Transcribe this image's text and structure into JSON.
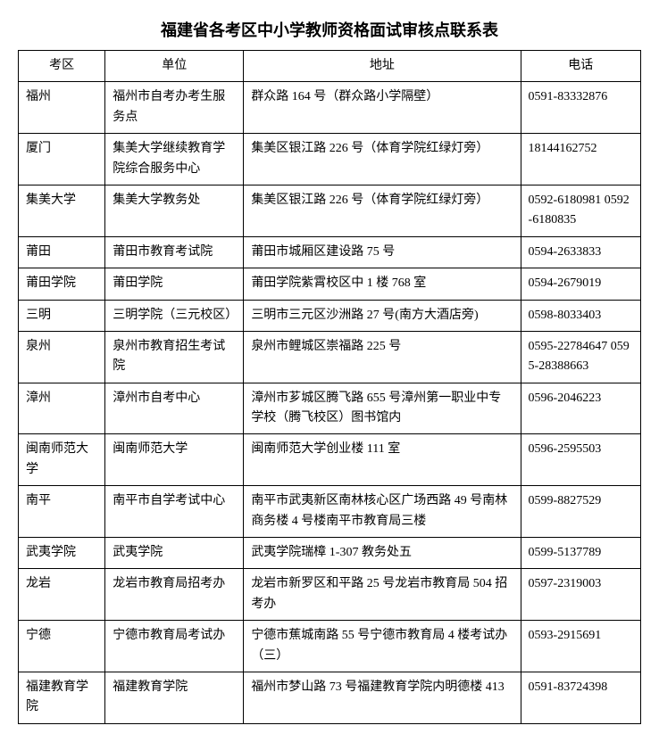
{
  "title": "福建省各考区中小学教师资格面试审核点联系表",
  "columns": [
    "考区",
    "单位",
    "地址",
    "电话"
  ],
  "rows": [
    {
      "area": "福州",
      "unit": "福州市自考办考生服务点",
      "addr": "群众路 164 号（群众路小学隔壁）",
      "tel": "0591-83332876"
    },
    {
      "area": "厦门",
      "unit": "集美大学继续教育学院综合服务中心",
      "addr": "集美区银江路 226 号（体育学院红绿灯旁）",
      "tel": "18144162752"
    },
    {
      "area": "集美大学",
      "unit": "集美大学教务处",
      "addr": "集美区银江路 226 号（体育学院红绿灯旁）",
      "tel": "0592-6180981 0592-6180835"
    },
    {
      "area": "莆田",
      "unit": "莆田市教育考试院",
      "addr": "莆田市城厢区建设路 75 号",
      "tel": "0594-2633833"
    },
    {
      "area": "莆田学院",
      "unit": "莆田学院",
      "addr": "莆田学院紫霄校区中 1 楼 768 室",
      "tel": "0594-2679019"
    },
    {
      "area": "三明",
      "unit": "三明学院（三元校区）",
      "addr": "三明市三元区沙洲路 27 号(南方大酒店旁)",
      "tel": "0598-8033403"
    },
    {
      "area": "泉州",
      "unit": "泉州市教育招生考试院",
      "addr": "泉州市鲤城区崇福路 225 号",
      "tel": "0595-22784647 0595-28388663"
    },
    {
      "area": "漳州",
      "unit": "漳州市自考中心",
      "addr": "漳州市芗城区腾飞路 655 号漳州第一职业中专学校（腾飞校区）图书馆内",
      "tel": "0596-2046223"
    },
    {
      "area": "闽南师范大学",
      "unit": "闽南师范大学",
      "addr": "闽南师范大学创业楼 111 室",
      "tel": "0596-2595503"
    },
    {
      "area": "南平",
      "unit": "南平市自学考试中心",
      "addr": "南平市武夷新区南林核心区广场西路 49 号南林商务楼 4 号楼南平市教育局三楼",
      "tel": "0599-8827529"
    },
    {
      "area": "武夷学院",
      "unit": "武夷学院",
      "addr": "武夷学院瑞樟 1-307 教务处五",
      "tel": "0599-5137789"
    },
    {
      "area": "龙岩",
      "unit": "龙岩市教育局招考办",
      "addr": "龙岩市新罗区和平路 25 号龙岩市教育局 504 招考办",
      "tel": "0597-2319003"
    },
    {
      "area": "宁德",
      "unit": "宁德市教育局考试办",
      "addr": "宁德市蕉城南路 55 号宁德市教育局 4 楼考试办（三）",
      "tel": "0593-2915691"
    },
    {
      "area": "福建教育学院",
      "unit": "福建教育学院",
      "addr": "福州市梦山路 73 号福建教育学院内明德楼 413",
      "tel": "0591-83724398"
    }
  ]
}
